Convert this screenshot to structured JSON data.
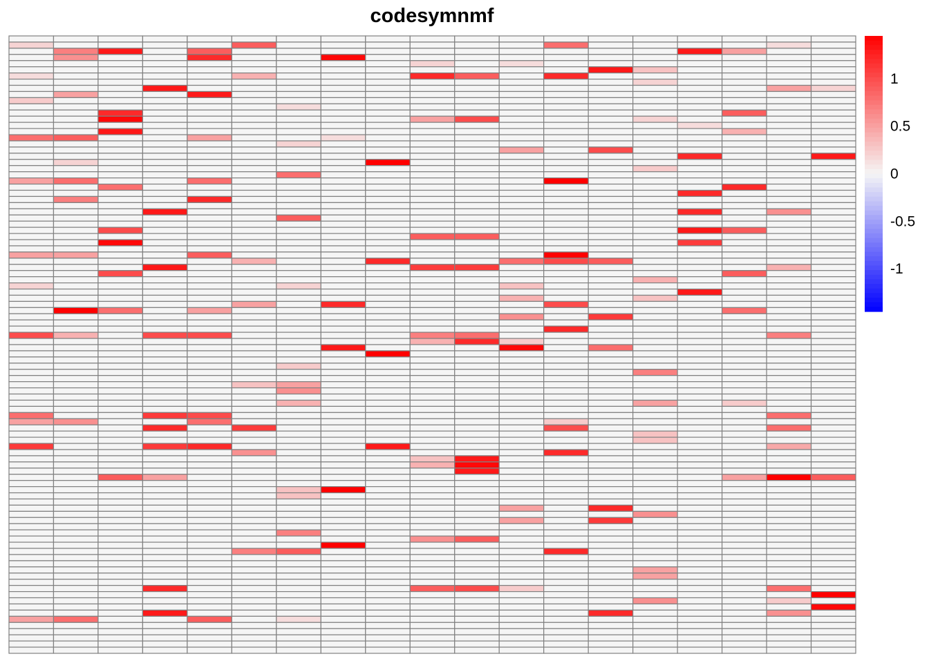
{
  "chart_data": {
    "type": "heatmap",
    "title": "codesymnmf",
    "nrows": 100,
    "ncols": 19,
    "xlabel": "",
    "ylabel": "",
    "color_scale": {
      "min": -1.45,
      "max": 1.45,
      "low_color": "#0000ff",
      "mid_color": "#f5f5f5",
      "high_color": "#ff0000"
    },
    "colorbar_ticks": [
      {
        "value": 1,
        "label": "1"
      },
      {
        "value": 0.5,
        "label": "0.5"
      },
      {
        "value": 0,
        "label": "0"
      },
      {
        "value": -0.5,
        "label": "-0.5"
      },
      {
        "value": -1,
        "label": "-1"
      }
    ],
    "grid": true,
    "grid_color": "#808080",
    "legend_position": "right",
    "cells": [
      [
        1,
        0,
        0.2
      ],
      [
        1,
        5,
        0.9
      ],
      [
        1,
        12,
        0.8
      ],
      [
        1,
        17,
        0.15
      ],
      [
        2,
        1,
        0.7
      ],
      [
        2,
        2,
        1.3
      ],
      [
        2,
        4,
        0.9
      ],
      [
        2,
        15,
        1.3
      ],
      [
        2,
        16,
        0.5
      ],
      [
        3,
        1,
        0.6
      ],
      [
        3,
        4,
        1.2
      ],
      [
        3,
        7,
        1.4
      ],
      [
        4,
        9,
        0.2
      ],
      [
        4,
        11,
        0.15
      ],
      [
        5,
        13,
        1.3
      ],
      [
        5,
        14,
        0.3
      ],
      [
        6,
        0,
        0.15
      ],
      [
        6,
        5,
        0.4
      ],
      [
        6,
        9,
        1.2
      ],
      [
        6,
        10,
        0.9
      ],
      [
        6,
        12,
        1.2
      ],
      [
        7,
        14,
        0.2
      ],
      [
        8,
        3,
        1.3
      ],
      [
        8,
        17,
        0.5
      ],
      [
        8,
        18,
        0.2
      ],
      [
        9,
        1,
        0.5
      ],
      [
        9,
        4,
        1.3
      ],
      [
        10,
        0,
        0.25
      ],
      [
        11,
        6,
        0.15
      ],
      [
        12,
        2,
        1.2
      ],
      [
        12,
        16,
        0.9
      ],
      [
        13,
        2,
        1.4
      ],
      [
        13,
        9,
        0.5
      ],
      [
        13,
        10,
        1.0
      ],
      [
        13,
        14,
        0.2
      ],
      [
        14,
        15,
        0.15
      ],
      [
        15,
        2,
        1.3
      ],
      [
        15,
        16,
        0.4
      ],
      [
        16,
        0,
        0.8
      ],
      [
        16,
        1,
        0.9
      ],
      [
        16,
        4,
        0.5
      ],
      [
        16,
        7,
        0.15
      ],
      [
        17,
        6,
        0.2
      ],
      [
        18,
        11,
        0.5
      ],
      [
        18,
        13,
        1.0
      ],
      [
        19,
        15,
        1.2
      ],
      [
        19,
        18,
        1.3
      ],
      [
        20,
        1,
        0.2
      ],
      [
        20,
        8,
        1.5
      ],
      [
        21,
        14,
        0.25
      ],
      [
        22,
        6,
        0.8
      ],
      [
        23,
        0,
        0.5
      ],
      [
        23,
        1,
        0.8
      ],
      [
        23,
        4,
        0.8
      ],
      [
        23,
        12,
        1.5
      ],
      [
        24,
        2,
        0.8
      ],
      [
        24,
        16,
        1.2
      ],
      [
        25,
        15,
        1.2
      ],
      [
        26,
        1,
        0.7
      ],
      [
        26,
        4,
        1.2
      ],
      [
        28,
        3,
        1.3
      ],
      [
        28,
        15,
        1.2
      ],
      [
        28,
        17,
        0.6
      ],
      [
        29,
        6,
        0.9
      ],
      [
        31,
        2,
        1.0
      ],
      [
        31,
        15,
        1.3
      ],
      [
        31,
        16,
        0.9
      ],
      [
        32,
        9,
        0.9
      ],
      [
        32,
        10,
        0.9
      ],
      [
        33,
        2,
        1.4
      ],
      [
        33,
        15,
        1.1
      ],
      [
        35,
        0,
        0.5
      ],
      [
        35,
        1,
        0.5
      ],
      [
        35,
        4,
        0.9
      ],
      [
        35,
        12,
        1.6
      ],
      [
        36,
        5,
        0.4
      ],
      [
        36,
        8,
        1.2
      ],
      [
        36,
        11,
        0.8
      ],
      [
        36,
        12,
        1.0
      ],
      [
        36,
        13,
        0.9
      ],
      [
        37,
        3,
        1.3
      ],
      [
        37,
        9,
        1.1
      ],
      [
        37,
        10,
        1.1
      ],
      [
        37,
        17,
        0.4
      ],
      [
        38,
        2,
        1.0
      ],
      [
        38,
        16,
        0.9
      ],
      [
        39,
        14,
        0.4
      ],
      [
        40,
        0,
        0.2
      ],
      [
        40,
        6,
        0.2
      ],
      [
        40,
        11,
        0.3
      ],
      [
        41,
        15,
        1.3
      ],
      [
        42,
        11,
        0.4
      ],
      [
        42,
        14,
        0.3
      ],
      [
        43,
        5,
        0.5
      ],
      [
        43,
        7,
        1.2
      ],
      [
        43,
        12,
        1.0
      ],
      [
        44,
        1,
        1.5
      ],
      [
        44,
        2,
        0.8
      ],
      [
        44,
        4,
        0.5
      ],
      [
        44,
        16,
        0.8
      ],
      [
        45,
        11,
        0.6
      ],
      [
        45,
        13,
        1.1
      ],
      [
        47,
        12,
        1.2
      ],
      [
        48,
        0,
        1.0
      ],
      [
        48,
        1,
        0.4
      ],
      [
        48,
        3,
        1.0
      ],
      [
        48,
        4,
        1.0
      ],
      [
        48,
        9,
        0.7
      ],
      [
        48,
        10,
        0.8
      ],
      [
        48,
        17,
        0.7
      ],
      [
        49,
        9,
        0.4
      ],
      [
        49,
        10,
        1.2
      ],
      [
        49,
        11,
        0.25
      ],
      [
        50,
        7,
        1.3
      ],
      [
        50,
        11,
        1.4
      ],
      [
        50,
        13,
        0.8
      ],
      [
        51,
        8,
        1.5
      ],
      [
        53,
        6,
        0.25
      ],
      [
        54,
        14,
        0.7
      ],
      [
        56,
        5,
        0.3
      ],
      [
        56,
        6,
        0.5
      ],
      [
        57,
        6,
        0.6
      ],
      [
        59,
        6,
        0.4
      ],
      [
        59,
        14,
        0.5
      ],
      [
        59,
        16,
        0.25
      ],
      [
        61,
        0,
        0.8
      ],
      [
        61,
        3,
        1.1
      ],
      [
        61,
        4,
        1.0
      ],
      [
        61,
        17,
        0.8
      ],
      [
        62,
        0,
        0.5
      ],
      [
        62,
        1,
        0.6
      ],
      [
        62,
        4,
        0.8
      ],
      [
        62,
        12,
        0.25
      ],
      [
        63,
        3,
        1.2
      ],
      [
        63,
        5,
        1.1
      ],
      [
        63,
        12,
        1.0
      ],
      [
        63,
        17,
        0.8
      ],
      [
        64,
        14,
        0.3
      ],
      [
        65,
        14,
        0.3
      ],
      [
        66,
        0,
        1.1
      ],
      [
        66,
        3,
        1.1
      ],
      [
        66,
        4,
        1.2
      ],
      [
        66,
        8,
        1.3
      ],
      [
        66,
        17,
        0.45
      ],
      [
        67,
        5,
        0.6
      ],
      [
        67,
        12,
        1.2
      ],
      [
        68,
        9,
        0.3
      ],
      [
        68,
        10,
        1.3
      ],
      [
        69,
        9,
        0.4
      ],
      [
        69,
        10,
        1.4
      ],
      [
        70,
        10,
        1.3
      ],
      [
        71,
        2,
        0.9
      ],
      [
        71,
        3,
        0.5
      ],
      [
        71,
        16,
        0.5
      ],
      [
        71,
        17,
        1.5
      ],
      [
        71,
        18,
        0.9
      ],
      [
        73,
        7,
        1.5
      ],
      [
        73,
        6,
        0.3
      ],
      [
        74,
        6,
        0.3
      ],
      [
        76,
        11,
        0.5
      ],
      [
        76,
        13,
        1.2
      ],
      [
        77,
        14,
        0.6
      ],
      [
        78,
        11,
        0.5
      ],
      [
        78,
        13,
        1.1
      ],
      [
        80,
        6,
        0.7
      ],
      [
        81,
        9,
        0.6
      ],
      [
        81,
        10,
        0.9
      ],
      [
        82,
        7,
        1.5
      ],
      [
        83,
        5,
        0.7
      ],
      [
        83,
        6,
        0.9
      ],
      [
        83,
        12,
        1.2
      ],
      [
        86,
        14,
        0.5
      ],
      [
        87,
        14,
        0.5
      ],
      [
        89,
        3,
        1.2
      ],
      [
        89,
        9,
        0.9
      ],
      [
        89,
        10,
        1.0
      ],
      [
        89,
        11,
        0.25
      ],
      [
        89,
        17,
        0.8
      ],
      [
        90,
        18,
        1.5
      ],
      [
        91,
        14,
        0.6
      ],
      [
        91,
        17,
        0.25
      ],
      [
        92,
        18,
        1.4
      ],
      [
        93,
        3,
        1.3
      ],
      [
        93,
        13,
        1.2
      ],
      [
        93,
        17,
        0.6
      ],
      [
        94,
        0,
        0.5
      ],
      [
        94,
        1,
        0.8
      ],
      [
        94,
        4,
        0.9
      ],
      [
        94,
        6,
        0.15
      ]
    ]
  }
}
